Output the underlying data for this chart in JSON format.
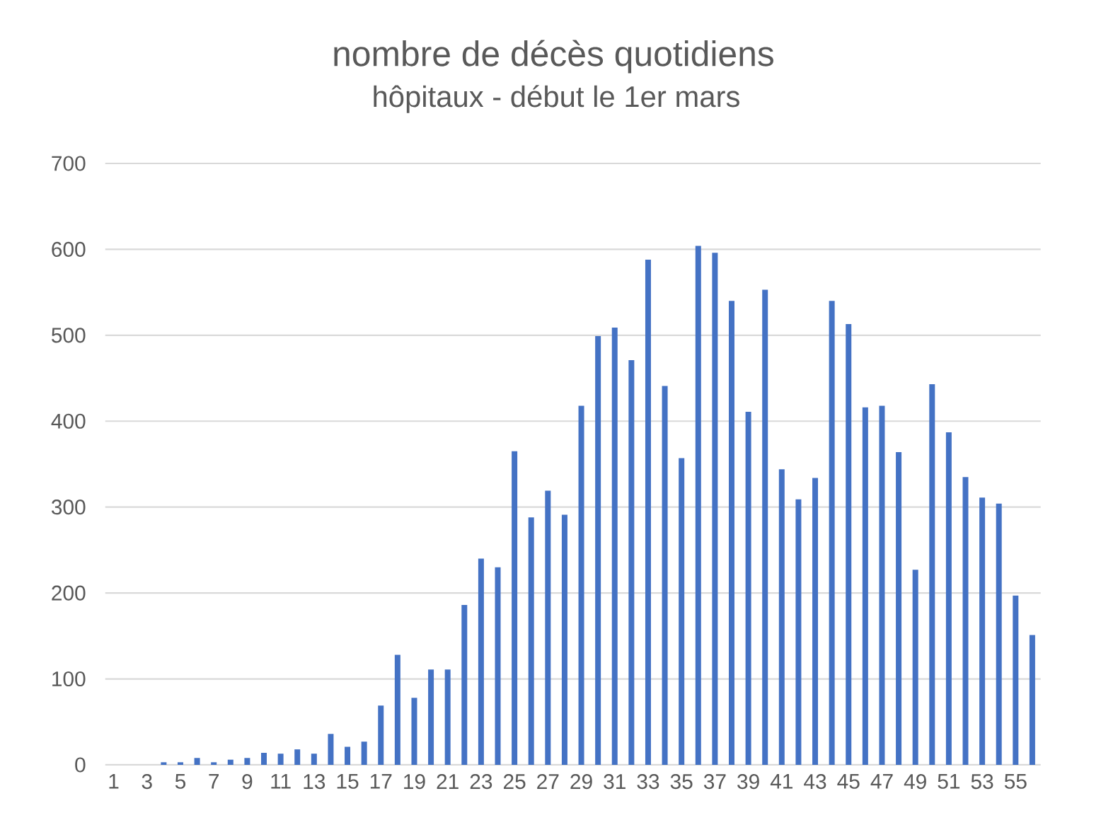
{
  "chart_data": {
    "type": "bar",
    "title": "nombre de décès quotidiens",
    "subtitle": "hôpitaux - début le 1er mars",
    "categories": [
      "1",
      null,
      "3",
      null,
      "5",
      null,
      "7",
      null,
      "9",
      null,
      "11",
      null,
      "13",
      null,
      "15",
      null,
      "17",
      null,
      "19",
      null,
      "21",
      null,
      "23",
      null,
      "25",
      null,
      "27",
      null,
      "29",
      null,
      "31",
      null,
      "33",
      null,
      "35",
      null,
      "37",
      null,
      "39",
      null,
      "41",
      null,
      "43",
      null,
      "45",
      null,
      "47",
      null,
      "49",
      null,
      "51",
      null,
      "53",
      null,
      "55",
      null
    ],
    "values": [
      0,
      0,
      0,
      3,
      3,
      8,
      3,
      6,
      8,
      14,
      13,
      18,
      13,
      36,
      21,
      27,
      69,
      128,
      78,
      111,
      111,
      186,
      240,
      230,
      365,
      288,
      319,
      291,
      418,
      499,
      509,
      471,
      588,
      441,
      357,
      604,
      596,
      540,
      411,
      553,
      344,
      309,
      334,
      540,
      513,
      416,
      418,
      364,
      227,
      443,
      387,
      335,
      311,
      304,
      197,
      151
    ],
    "color": "#4472c4",
    "ylim": [
      0,
      700
    ],
    "yticks": [
      0,
      100,
      200,
      300,
      400,
      500,
      600,
      700
    ],
    "grid": "y"
  }
}
